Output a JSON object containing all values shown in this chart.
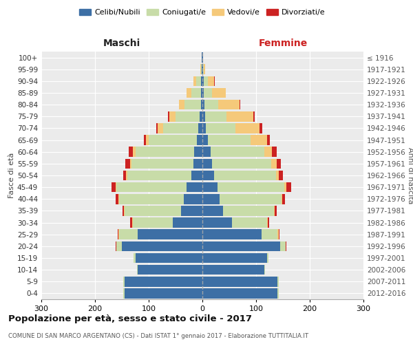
{
  "age_groups": [
    "0-4",
    "5-9",
    "10-14",
    "15-19",
    "20-24",
    "25-29",
    "30-34",
    "35-39",
    "40-44",
    "45-49",
    "50-54",
    "55-59",
    "60-64",
    "65-69",
    "70-74",
    "75-79",
    "80-84",
    "85-89",
    "90-94",
    "95-99",
    "100+"
  ],
  "birth_years": [
    "2012-2016",
    "2007-2011",
    "2002-2006",
    "1997-2001",
    "1992-1996",
    "1987-1991",
    "1982-1986",
    "1977-1981",
    "1972-1976",
    "1967-1971",
    "1962-1966",
    "1957-1961",
    "1952-1956",
    "1947-1951",
    "1942-1946",
    "1937-1941",
    "1932-1936",
    "1927-1931",
    "1922-1926",
    "1917-1921",
    "≤ 1916"
  ],
  "maschi": {
    "celibi": [
      145,
      145,
      120,
      125,
      150,
      120,
      55,
      40,
      35,
      30,
      20,
      17,
      15,
      10,
      8,
      5,
      3,
      3,
      2,
      1,
      1
    ],
    "coniugati": [
      2,
      2,
      2,
      3,
      10,
      35,
      75,
      105,
      120,
      130,
      120,
      115,
      110,
      90,
      65,
      45,
      30,
      18,
      10,
      2,
      0
    ],
    "vedovi": [
      0,
      0,
      0,
      0,
      0,
      1,
      1,
      1,
      1,
      1,
      2,
      2,
      4,
      5,
      10,
      12,
      10,
      8,
      5,
      1,
      0
    ],
    "divorziati": [
      0,
      0,
      0,
      0,
      1,
      2,
      4,
      3,
      5,
      8,
      5,
      10,
      8,
      4,
      3,
      2,
      1,
      0,
      0,
      0,
      0
    ]
  },
  "femmine": {
    "nubili": [
      140,
      140,
      115,
      120,
      145,
      110,
      55,
      38,
      32,
      28,
      22,
      18,
      15,
      10,
      7,
      5,
      4,
      3,
      2,
      1,
      1
    ],
    "coniugate": [
      2,
      2,
      2,
      3,
      10,
      30,
      65,
      95,
      115,
      125,
      115,
      110,
      100,
      80,
      55,
      40,
      25,
      15,
      8,
      2,
      0
    ],
    "vedove": [
      0,
      0,
      0,
      0,
      0,
      2,
      2,
      2,
      2,
      3,
      5,
      10,
      15,
      30,
      45,
      50,
      40,
      25,
      12,
      2,
      0
    ],
    "divorziate": [
      0,
      0,
      0,
      0,
      1,
      2,
      3,
      3,
      5,
      10,
      8,
      8,
      9,
      5,
      4,
      3,
      2,
      1,
      1,
      0,
      0
    ]
  },
  "colors": {
    "celibi": "#3d6fa5",
    "coniugati": "#c8dca8",
    "vedovi": "#f5c97a",
    "divorziati": "#cc2222"
  },
  "title": "Popolazione per età, sesso e stato civile - 2017",
  "subtitle": "COMUNE DI SAN MARCO ARGENTANO (CS) - Dati ISTAT 1° gennaio 2017 - Elaborazione TUTTITALIA.IT",
  "xlabel_left": "Maschi",
  "xlabel_right": "Femmine",
  "ylabel": "Fasce di età",
  "ylabel_right": "Anni di nascita",
  "xlim": 300,
  "bg_color": "#ffffff",
  "plot_bg": "#ebebeb",
  "grid_color": "#ffffff"
}
